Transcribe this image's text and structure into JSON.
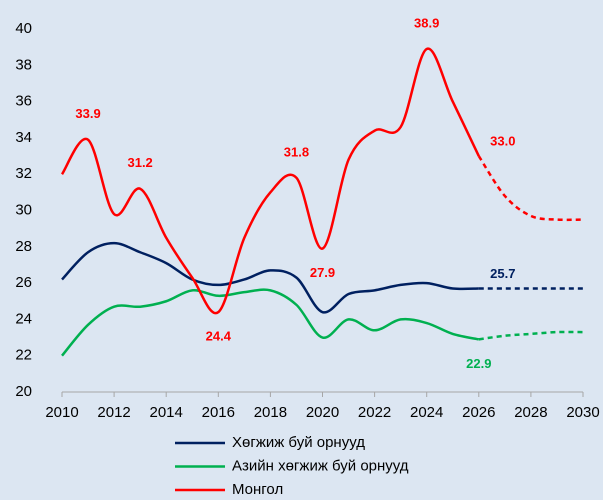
{
  "chart_data": {
    "type": "line",
    "x": [
      2010,
      2011,
      2012,
      2013,
      2014,
      2015,
      2016,
      2017,
      2018,
      2019,
      2020,
      2021,
      2022,
      2023,
      2024,
      2025,
      2026,
      2027,
      2028,
      2029,
      2030
    ],
    "xlim": [
      2010,
      2030
    ],
    "xticks": [
      2010,
      2012,
      2014,
      2016,
      2018,
      2020,
      2022,
      2024,
      2026,
      2028,
      2030
    ],
    "ylim": [
      20,
      40
    ],
    "yticks": [
      20,
      22,
      24,
      26,
      28,
      30,
      32,
      34,
      36,
      38,
      40
    ],
    "forecast_start": 2026,
    "legend": "bottom",
    "series": [
      {
        "name": "Хөгжиж буй орнууд",
        "color": "#002060",
        "values": [
          26.2,
          27.7,
          28.2,
          27.7,
          27.1,
          26.2,
          25.9,
          26.2,
          26.7,
          26.3,
          24.4,
          25.4,
          25.6,
          25.9,
          26.0,
          25.7,
          25.7,
          25.7,
          25.7,
          25.7,
          25.7
        ],
        "value_labels": [
          null,
          null,
          null,
          null,
          null,
          null,
          null,
          null,
          null,
          null,
          null,
          null,
          null,
          null,
          null,
          null,
          "25.7",
          null,
          null,
          null,
          null
        ]
      },
      {
        "name": "Азийн хөгжиж буй орнууд",
        "color": "#00b050",
        "values": [
          22.0,
          23.7,
          24.7,
          24.7,
          25.0,
          25.6,
          25.3,
          25.5,
          25.6,
          24.8,
          23.0,
          24.0,
          23.4,
          24.0,
          23.8,
          23.2,
          22.9,
          23.1,
          23.2,
          23.3,
          23.3
        ],
        "value_labels": [
          null,
          null,
          null,
          null,
          null,
          null,
          null,
          null,
          null,
          null,
          null,
          null,
          null,
          null,
          null,
          null,
          "22.9",
          null,
          null,
          null,
          null
        ]
      },
      {
        "name": "Монгол",
        "color": "#ff0000",
        "values": [
          32.0,
          33.9,
          29.8,
          31.2,
          28.5,
          26.3,
          24.4,
          28.5,
          31.0,
          31.8,
          27.9,
          32.8,
          34.4,
          34.6,
          38.9,
          36.0,
          33.0,
          30.8,
          29.7,
          29.5,
          29.5
        ],
        "value_labels": [
          null,
          "33.9",
          null,
          "31.2",
          null,
          null,
          "24.4",
          null,
          null,
          "31.8",
          "27.9",
          null,
          null,
          null,
          "38.9",
          null,
          "33.0",
          null,
          null,
          null,
          null
        ]
      }
    ]
  }
}
